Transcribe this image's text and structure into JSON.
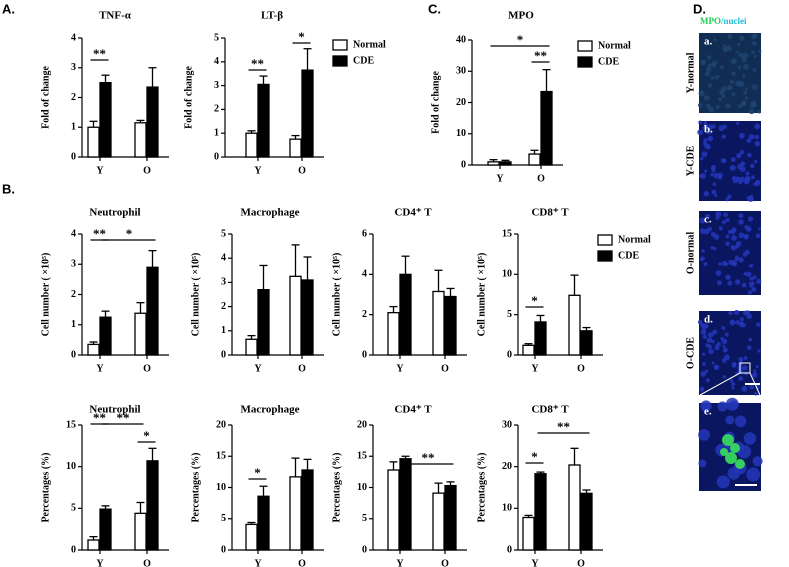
{
  "figure": {
    "panel_labels": [
      "A.",
      "B.",
      "C.",
      "D."
    ],
    "stain": {
      "mpo": "MPO",
      "nuclei": "/nuclei"
    },
    "images": [
      {
        "label": "a.",
        "name": "Y-normal"
      },
      {
        "label": "b.",
        "name": "Y-CDE"
      },
      {
        "label": "c.",
        "name": "O-normal"
      },
      {
        "label": "d.",
        "name": "O-CDE"
      },
      {
        "label": "e."
      }
    ]
  },
  "chart_data": [
    {
      "type": "bar",
      "title": "TNF-α",
      "y_label": "Fold of change",
      "categories": [
        "Y",
        "O"
      ],
      "series": [
        {
          "name": "Normal",
          "color": "#ffffff",
          "values": [
            1.0,
            1.15
          ],
          "errors": [
            0.2,
            0.08
          ]
        },
        {
          "name": "CDE",
          "color": "#000000",
          "values": [
            2.5,
            2.35
          ],
          "errors": [
            0.25,
            0.65
          ]
        }
      ],
      "ylim": [
        0,
        4
      ],
      "yticks": [
        0,
        1,
        2,
        3,
        4
      ],
      "annotations": [
        "**"
      ],
      "legend": false
    },
    {
      "type": "bar",
      "title": "LT-β",
      "y_label": "Fold of change",
      "categories": [
        "Y",
        "O"
      ],
      "series": [
        {
          "name": "Normal",
          "color": "#ffffff",
          "values": [
            1.0,
            0.75
          ],
          "errors": [
            0.1,
            0.15
          ]
        },
        {
          "name": "CDE",
          "color": "#000000",
          "values": [
            3.05,
            3.65
          ],
          "errors": [
            0.35,
            0.9
          ]
        }
      ],
      "ylim": [
        0,
        5
      ],
      "yticks": [
        0,
        1,
        2,
        3,
        4,
        5
      ],
      "annotations": [
        "**",
        "*"
      ],
      "legend": true
    },
    {
      "type": "bar",
      "title": "MPO",
      "y_label": "Fold of change",
      "categories": [
        "Y",
        "O"
      ],
      "series": [
        {
          "name": "Normal",
          "color": "#ffffff",
          "values": [
            1.0,
            3.5
          ],
          "errors": [
            0.7,
            1.2
          ]
        },
        {
          "name": "CDE",
          "color": "#000000",
          "values": [
            1.0,
            23.5
          ],
          "errors": [
            0.5,
            7
          ]
        }
      ],
      "ylim": [
        0,
        40
      ],
      "yticks": [
        0,
        10,
        20,
        30,
        40
      ],
      "annotations": [
        "*",
        "**"
      ],
      "legend": true
    },
    {
      "type": "bar",
      "title": "Neutrophil",
      "y_label": "Cell number ( ×10⁵)",
      "categories": [
        "Y",
        "O"
      ],
      "series": [
        {
          "name": "Normal",
          "color": "#ffffff",
          "values": [
            0.35,
            1.38
          ],
          "errors": [
            0.08,
            0.35
          ]
        },
        {
          "name": "CDE",
          "color": "#000000",
          "values": [
            1.25,
            2.9
          ],
          "errors": [
            0.2,
            0.55
          ]
        }
      ],
      "ylim": [
        0,
        4
      ],
      "yticks": [
        0,
        1,
        2,
        3,
        4
      ],
      "annotations": [
        "**",
        "*"
      ],
      "legend": false
    },
    {
      "type": "bar",
      "title": "Macrophage",
      "y_label": "Cell number ( ×10⁵)",
      "categories": [
        "Y",
        "O"
      ],
      "series": [
        {
          "name": "Normal",
          "color": "#ffffff",
          "values": [
            0.65,
            3.25
          ],
          "errors": [
            0.15,
            1.3
          ]
        },
        {
          "name": "CDE",
          "color": "#000000",
          "values": [
            2.7,
            3.1
          ],
          "errors": [
            1.0,
            0.95
          ]
        }
      ],
      "ylim": [
        0,
        5
      ],
      "yticks": [
        0,
        1,
        2,
        3,
        4,
        5
      ],
      "annotations": [],
      "legend": false
    },
    {
      "type": "bar",
      "title": "CD4⁺ T",
      "y_label": "Cell number ( ×10⁵)",
      "categories": [
        "Y",
        "O"
      ],
      "series": [
        {
          "name": "Normal",
          "color": "#ffffff",
          "values": [
            2.1,
            3.15
          ],
          "errors": [
            0.3,
            1.05
          ]
        },
        {
          "name": "CDE",
          "color": "#000000",
          "values": [
            4.0,
            2.9
          ],
          "errors": [
            0.9,
            0.4
          ]
        }
      ],
      "ylim": [
        0,
        6
      ],
      "yticks": [
        0,
        2,
        4,
        6
      ],
      "annotations": [],
      "legend": false
    },
    {
      "type": "bar",
      "title": "CD8⁺ T",
      "y_label": "Cell number ( ×10⁵)",
      "categories": [
        "Y",
        "O"
      ],
      "series": [
        {
          "name": "Normal",
          "color": "#ffffff",
          "values": [
            1.2,
            7.4
          ],
          "errors": [
            0.2,
            2.5
          ]
        },
        {
          "name": "CDE",
          "color": "#000000",
          "values": [
            4.1,
            3.0
          ],
          "errors": [
            0.8,
            0.4
          ]
        }
      ],
      "ylim": [
        0,
        15
      ],
      "yticks": [
        0,
        5,
        10,
        15
      ],
      "annotations": [
        "*"
      ],
      "legend": true
    },
    {
      "type": "bar",
      "title": "Neutrophil",
      "y_label": "Percentages (%)",
      "categories": [
        "Y",
        "O"
      ],
      "series": [
        {
          "name": "Normal",
          "color": "#ffffff",
          "values": [
            1.2,
            4.4
          ],
          "errors": [
            0.4,
            1.3
          ]
        },
        {
          "name": "CDE",
          "color": "#000000",
          "values": [
            4.9,
            10.7
          ],
          "errors": [
            0.4,
            1.5
          ]
        }
      ],
      "ylim": [
        0,
        15
      ],
      "yticks": [
        0,
        5,
        10,
        15
      ],
      "annotations": [
        "**",
        "**",
        "*"
      ],
      "legend": false
    },
    {
      "type": "bar",
      "title": "Macrophage",
      "y_label": "Percentages (%)",
      "categories": [
        "Y",
        "O"
      ],
      "series": [
        {
          "name": "Normal",
          "color": "#ffffff",
          "values": [
            4.1,
            11.7
          ],
          "errors": [
            0.3,
            3.0
          ]
        },
        {
          "name": "CDE",
          "color": "#000000",
          "values": [
            8.6,
            12.8
          ],
          "errors": [
            1.6,
            1.7
          ]
        }
      ],
      "ylim": [
        0,
        20
      ],
      "yticks": [
        0,
        5,
        10,
        15,
        20
      ],
      "annotations": [
        "*"
      ],
      "legend": false
    },
    {
      "type": "bar",
      "title": "CD4⁺ T",
      "y_label": "Percentages (%)",
      "categories": [
        "Y",
        "O"
      ],
      "series": [
        {
          "name": "Normal",
          "color": "#ffffff",
          "values": [
            12.8,
            9.1
          ],
          "errors": [
            1.3,
            1.6
          ]
        },
        {
          "name": "CDE",
          "color": "#000000",
          "values": [
            14.6,
            10.3
          ],
          "errors": [
            0.4,
            0.6
          ]
        }
      ],
      "ylim": [
        0,
        20
      ],
      "yticks": [
        0,
        5,
        10,
        15,
        20
      ],
      "annotations": [
        "**"
      ],
      "legend": false
    },
    {
      "type": "bar",
      "title": "CD8⁺ T",
      "y_label": "Percentages (%)",
      "categories": [
        "Y",
        "O"
      ],
      "series": [
        {
          "name": "Normal",
          "color": "#ffffff",
          "values": [
            7.8,
            20.4
          ],
          "errors": [
            0.5,
            4
          ]
        },
        {
          "name": "CDE",
          "color": "#000000",
          "values": [
            18.3,
            13.6
          ],
          "errors": [
            0.4,
            0.8
          ]
        }
      ],
      "ylim": [
        0,
        30
      ],
      "yticks": [
        0,
        10,
        20,
        30
      ],
      "annotations": [
        "*",
        "**"
      ],
      "legend": false
    }
  ]
}
